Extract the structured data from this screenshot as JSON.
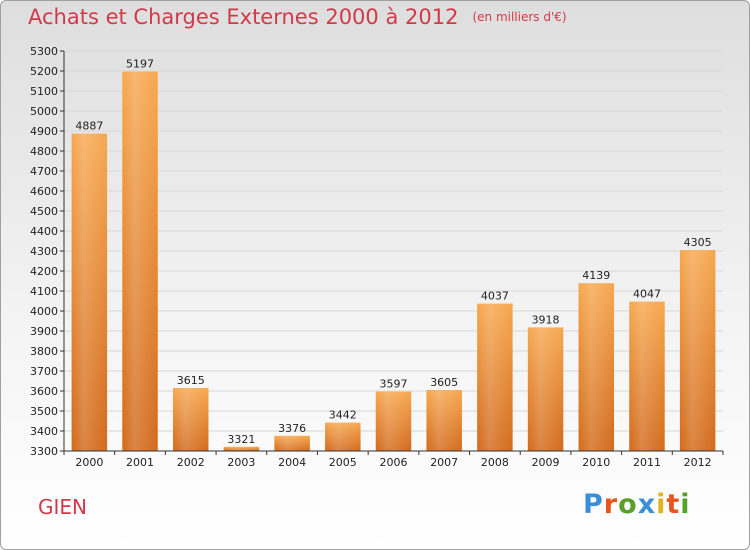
{
  "header": {
    "title": "Achats et Charges Externes 2000 à 2012",
    "unit": "(en milliers d'€)"
  },
  "footer": {
    "city": "GIEN",
    "logo": "Proxiti",
    "logo_colors": [
      "#3a8fd6",
      "#e8541c",
      "#5a9e2b",
      "#3a8fd6",
      "#e3b31b",
      "#e8541c",
      "#5a9e2b"
    ]
  },
  "colors": {
    "bar_light": "#f7a850",
    "bar_dark": "#d26a1c",
    "grid": "#d8d8d8",
    "axis": "#333333",
    "title": "#d23a4a"
  },
  "chart_data": {
    "type": "bar",
    "categories": [
      "2000",
      "2001",
      "2002",
      "2003",
      "2004",
      "2005",
      "2006",
      "2007",
      "2008",
      "2009",
      "2010",
      "2011",
      "2012"
    ],
    "values": [
      4887,
      5197,
      3615,
      3321,
      3376,
      3442,
      3597,
      3605,
      4037,
      3918,
      4139,
      4047,
      4305
    ],
    "ylim": [
      3300,
      5300
    ],
    "ytick_step": 100,
    "grid": true,
    "legend": "none"
  }
}
